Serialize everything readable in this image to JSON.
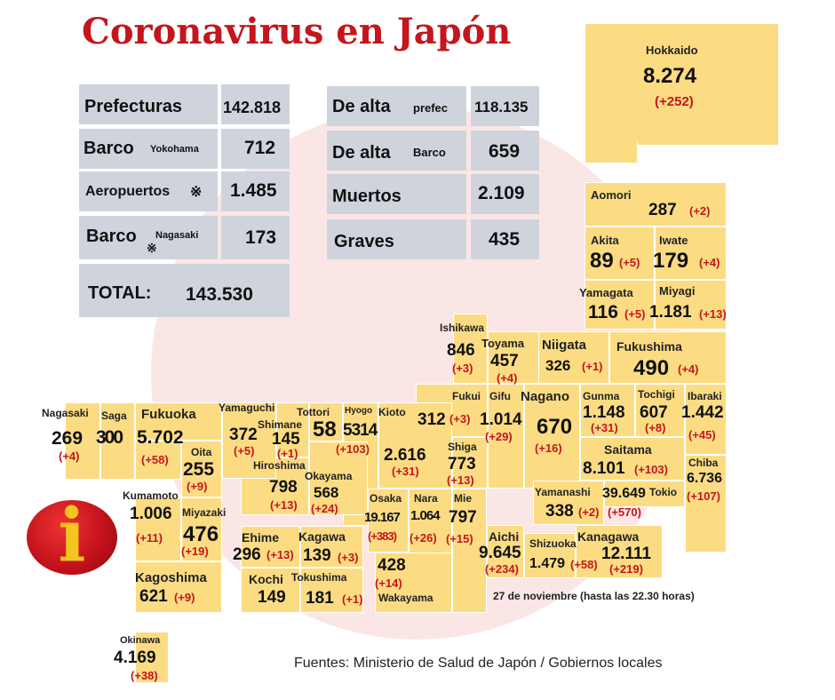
{
  "title": "Coronavirus en Japón",
  "summary": {
    "prefecturas_label": "Prefecturas",
    "prefecturas_value": "142.818",
    "barco_label": "Barco",
    "barco_sub": "Yokohama",
    "barco_value": "712",
    "aeropuertos_label": "Aeropuertos",
    "aeropuertos_mark": "※",
    "aeropuertos_value": "1.485",
    "barco2_label": "Barco",
    "barco2_mark": "※",
    "barco2_sub": "Nagasaki",
    "barco2_value": "173",
    "total_label": "TOTAL:",
    "total_value": "143.530",
    "alta_pref_label": "De alta",
    "alta_pref_sub": "prefec",
    "alta_pref_value": "118.135",
    "alta_barco_label": "De alta",
    "alta_barco_sub": "Barco",
    "alta_barco_value": "659",
    "muertos_label": "Muertos",
    "muertos_value": "2.109",
    "graves_label": "Graves",
    "graves_value": "435"
  },
  "prefectures": {
    "hokkaido": {
      "name": "Hokkaido",
      "value": "8.274",
      "delta": "(+252)"
    },
    "aomori": {
      "name": "Aomori",
      "value": "287",
      "delta": "(+2)"
    },
    "akita": {
      "name": "Akita",
      "value": "89",
      "delta": "(+5)"
    },
    "iwate": {
      "name": "Iwate",
      "value": "179",
      "delta": "(+4)"
    },
    "yamagata": {
      "name": "Yamagata",
      "value": "116",
      "delta": "(+5)"
    },
    "miyagi": {
      "name": "Miyagi",
      "value": "1.181",
      "delta": "(+13)"
    },
    "ishikawa": {
      "name": "Ishikawa",
      "value": "846",
      "delta": "(+3)"
    },
    "toyama": {
      "name": "Toyama",
      "value": "457",
      "delta": "(+4)"
    },
    "niigata": {
      "name": "Niigata",
      "value": "326",
      "delta": "(+1)"
    },
    "fukushima": {
      "name": "Fukushima",
      "value": "490",
      "delta": "(+4)"
    },
    "fukui": {
      "name": "Fukui",
      "value": "312",
      "delta": "(+3)"
    },
    "gifu": {
      "name": "Gifu",
      "value": "1.014",
      "delta": "(+29)"
    },
    "nagano": {
      "name": "Nagano",
      "value": "670",
      "delta": "(+16)"
    },
    "gunma": {
      "name": "Gunma",
      "value": "1.148",
      "delta": "(+31)"
    },
    "tochigi": {
      "name": "Tochigi",
      "value": "607",
      "delta": "(+8)"
    },
    "ibaraki": {
      "name": "Ibaraki",
      "value": "1.442",
      "delta": "(+45)"
    },
    "saitama": {
      "name": "Saitama",
      "value": "8.101",
      "delta": "(+103)"
    },
    "chiba": {
      "name": "Chiba",
      "value": "6.736",
      "delta": "(+107)"
    },
    "yamanashi": {
      "name": "Yamanashi",
      "value": "338",
      "delta": "(+2)"
    },
    "tokio": {
      "name": "Tokio",
      "value": "39.649",
      "delta": "(+570)"
    },
    "kanagawa": {
      "name": "Kanagawa",
      "value": "12.111",
      "delta": "(+219)"
    },
    "shizuoka": {
      "name": "Shizuoka",
      "value": "1.479",
      "delta": "(+58)"
    },
    "aichi": {
      "name": "Aichi",
      "value": "9.645",
      "delta": "(+234)"
    },
    "shiga": {
      "name": "Shiga",
      "value": "773",
      "delta": "(+13)"
    },
    "kioto": {
      "name": "Kioto",
      "value": "2.616",
      "delta": "(+31)"
    },
    "hyogo": {
      "name": "Hyogo",
      "value": "5314",
      "delta": "(+103)"
    },
    "osaka": {
      "name": "Osaka",
      "value": "19.167",
      "delta": "(+383)"
    },
    "nara": {
      "name": "Nara",
      "value": "1.064",
      "delta": "(+26)"
    },
    "mie": {
      "name": "Mie",
      "value": "797",
      "delta": "(+15)"
    },
    "wakayama": {
      "name": "Wakayama",
      "value": "428",
      "delta": "(+14)"
    },
    "tottori": {
      "name": "Tottori",
      "value": "58",
      "delta": ""
    },
    "shimane": {
      "name": "Shimane",
      "value": "145",
      "delta": "(+1)"
    },
    "okayama": {
      "name": "Okayama",
      "value": "568",
      "delta": "(+24)"
    },
    "hiroshima": {
      "name": "Hiroshima",
      "value": "798",
      "delta": "(+13)"
    },
    "yamaguchi": {
      "name": "Yamaguchi",
      "value": "372",
      "delta": "(+5)"
    },
    "ehime": {
      "name": "Ehime",
      "value": "296",
      "delta": "(+13)"
    },
    "kagawa": {
      "name": "Kagawa",
      "value": "139",
      "delta": "(+3)"
    },
    "kochi": {
      "name": "Kochi",
      "value": "149",
      "delta": ""
    },
    "tokushima": {
      "name": "Tokushima",
      "value": "181",
      "delta": "(+1)"
    },
    "fukuoka": {
      "name": "Fukuoka",
      "value": "5.702",
      "delta": "(+58)"
    },
    "saga": {
      "name": "Saga",
      "value": "300",
      "delta": ""
    },
    "nagasaki": {
      "name": "Nagasaki",
      "value": "269",
      "delta": "(+4)"
    },
    "oita": {
      "name": "Oita",
      "value": "255",
      "delta": "(+9)"
    },
    "kumamoto": {
      "name": "Kumamoto",
      "value": "1.006",
      "delta": "(+11)"
    },
    "miyazaki": {
      "name": "Miyazaki",
      "value": "476",
      "delta": "(+19)"
    },
    "kagoshima": {
      "name": "Kagoshima",
      "value": "621",
      "delta": "(+9)"
    },
    "okinawa": {
      "name": "Okinawa",
      "value": "4.169",
      "delta": "(+38)"
    }
  },
  "date_note": "27 de noviembre  (hasta las 22.30 horas)",
  "source": "Fuentes: Ministerio de Salud de Japón / Gobiernos locales",
  "info_icon_letter": "i",
  "colors": {
    "title": "#c4161c",
    "region": "#fcdc83",
    "summary_box": "#cfd4dc",
    "delta": "#c4161c"
  }
}
